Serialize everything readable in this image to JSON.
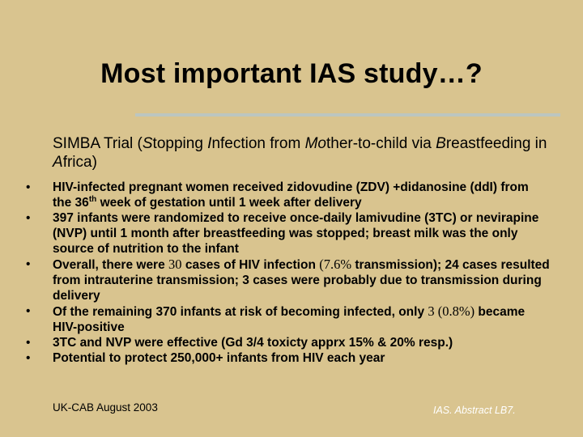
{
  "slide": {
    "title": "Most important IAS study…?",
    "intro": {
      "p1": "SIMBA Trial (",
      "S": "S",
      "p2": "topping ",
      "I": "I",
      "p3": "nfection from ",
      "Mo": "Mo",
      "p4": "ther-to-child via ",
      "B": "B",
      "p5": "reastfeeding in ",
      "A": "A",
      "p6": "frica)"
    },
    "bullets": [
      {
        "a": "HIV-infected pregnant women received zidovudine (ZDV) +didanosine (ddI) from the 36",
        "sup": "th",
        "b": " week of gestation until 1 week after delivery"
      },
      {
        "text": "397 infants were randomized to receive once-daily lamivudine (3TC) or nevirapine (NVP) until 1 month after breastfeeding was stopped; breast milk was the only source of nutrition to the infant"
      },
      {
        "a": "Overall, there were ",
        "n1": "30",
        "b": " cases of HIV infection ",
        "n2": "(7.6%",
        "c": " transmission); 24 cases resulted from intrauterine transmission; 3 cases were probably due to transmission during delivery"
      },
      {
        "a": "Of the remaining 370 infants at risk of becoming infected, only ",
        "n1": "3 (0.8%)",
        "b": " became HIV-positive"
      },
      {
        "text": "3TC and NVP were effective (Gd 3/4 toxicty apprx 15% & 20% resp.)"
      },
      {
        "text": "Potential to protect 250,000+ infants from HIV each year"
      }
    ],
    "bullet_char": "•",
    "footer_left": "UK-CAB August 2003",
    "footer_right": "IAS. Abstract LB7."
  }
}
